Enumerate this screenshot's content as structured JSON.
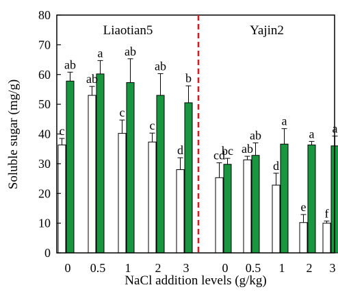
{
  "chart_data": {
    "type": "bar",
    "ylabel": "Soluble sugar (mg/g)",
    "xlabel": "NaCl addition levels (g/kg)",
    "ylim": [
      0,
      80
    ],
    "yticks": [
      0,
      10,
      20,
      30,
      40,
      50,
      60,
      70,
      80
    ],
    "colors": {
      "series_a": "#ffffff",
      "series_b": "#1a9641",
      "divider": "#e8141c"
    },
    "panels": [
      {
        "label": "Liaotian5",
        "categories": [
          "0",
          "0.5",
          "1",
          "2",
          "3"
        ],
        "series": [
          {
            "values": [
              36.3,
              53.0,
              40.2,
              37.3,
              28.0
            ],
            "errors": [
              2.2,
              3.0,
              4.5,
              3.0,
              4.0
            ],
            "letters": [
              "c",
              "ab",
              "c",
              "c",
              "d"
            ]
          },
          {
            "values": [
              57.8,
              60.2,
              57.3,
              53.0,
              50.5
            ],
            "errors": [
              3.0,
              4.5,
              8.0,
              7.3,
              5.7
            ],
            "letters": [
              "ab",
              "a",
              "ab",
              "ab",
              "b"
            ]
          }
        ]
      },
      {
        "label": "Yajin2",
        "categories": [
          "0",
          "0.5",
          "1",
          "2",
          "3"
        ],
        "series": [
          {
            "values": [
              25.3,
              31.3,
              22.8,
              10.2,
              10.0
            ],
            "errors": [
              5.0,
              1.2,
              4.0,
              2.7,
              0.7
            ],
            "letters": [
              "cd",
              "ab",
              "d",
              "e",
              "f"
            ]
          },
          {
            "values": [
              29.8,
              32.8,
              36.6,
              36.3,
              36.0
            ],
            "errors": [
              2.0,
              4.2,
              5.2,
              1.2,
              3.3
            ],
            "letters": [
              "bc",
              "ab",
              "a",
              "a",
              "a"
            ]
          }
        ]
      }
    ]
  }
}
